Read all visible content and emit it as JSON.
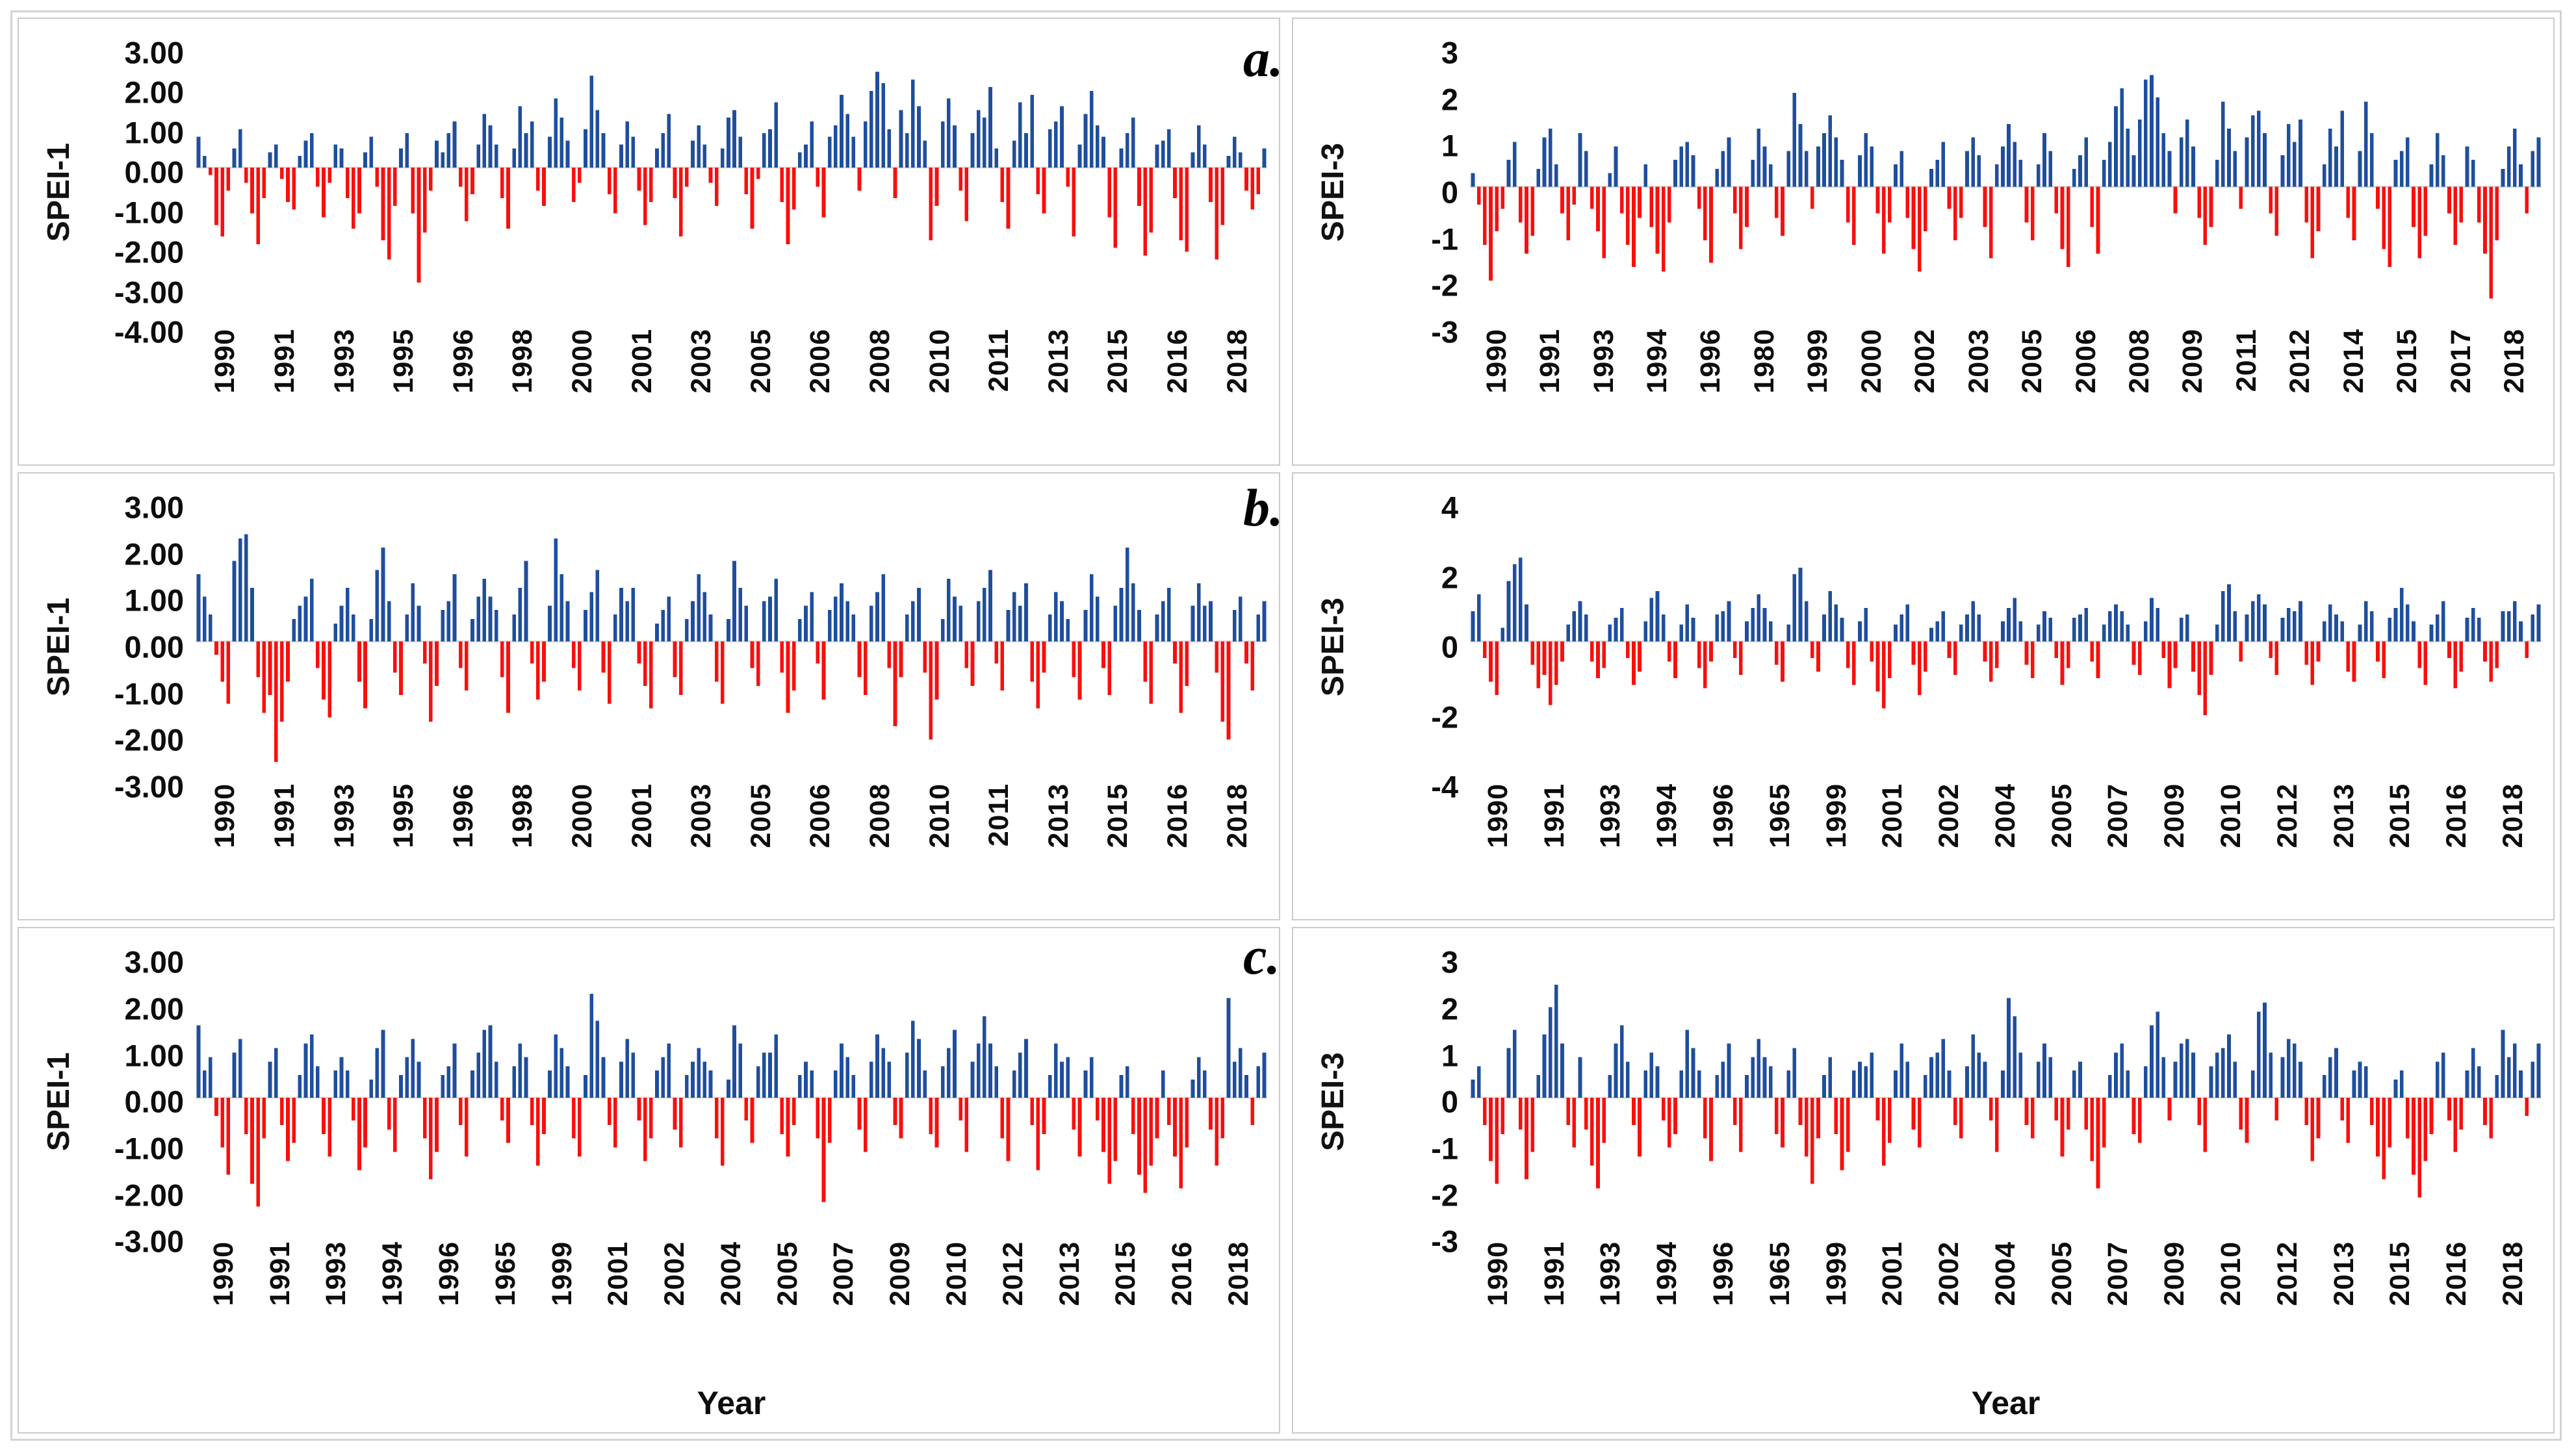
{
  "figure": {
    "panel_labels": [
      "a.",
      "b.",
      "c."
    ],
    "xlabel": "Year",
    "colors": {
      "positive": "#1f4e9c",
      "negative": "#f90f0c",
      "axis_line": "#dcdcdc",
      "panel_border": "#cbcbcb",
      "outer_border": "#d4d4d4"
    }
  },
  "chart_data": [
    {
      "id": "a-spei1",
      "type": "bar",
      "panel": "a.",
      "ylabel": "SPEI-1",
      "yticks": [
        "3.00",
        "2.00",
        "1.00",
        "0.00",
        "-1.00",
        "-2.00",
        "-3.00",
        "-4.00"
      ],
      "ylim": [
        -4,
        3
      ],
      "grid": false,
      "legend": "none",
      "xticklabels": [
        "1990",
        "1991",
        "1993",
        "1995",
        "1996",
        "1998",
        "2000",
        "2001",
        "2003",
        "2005",
        "2006",
        "2008",
        "2010",
        "2011",
        "2013",
        "2015",
        "2016",
        "2018"
      ],
      "values": [
        0.8,
        0.3,
        -0.2,
        -1.5,
        -1.8,
        -0.6,
        0.5,
        1.0,
        -0.4,
        -1.2,
        -2.0,
        -0.8,
        0.4,
        0.6,
        -0.3,
        -0.9,
        -1.1,
        0.3,
        0.7,
        0.9,
        -0.5,
        -1.3,
        -0.4,
        0.6,
        0.5,
        -0.8,
        -1.6,
        -1.2,
        0.4,
        0.8,
        -0.5,
        -1.9,
        -2.4,
        -1.0,
        0.5,
        0.9,
        -1.2,
        -3.0,
        -1.7,
        -0.6,
        0.7,
        0.4,
        0.9,
        1.2,
        -0.5,
        -1.4,
        -0.7,
        0.6,
        1.4,
        1.1,
        0.6,
        -0.8,
        -1.6,
        0.5,
        1.6,
        0.9,
        1.2,
        -0.6,
        -1.0,
        0.8,
        1.8,
        1.3,
        0.7,
        -0.9,
        -0.4,
        1.0,
        2.4,
        1.5,
        0.9,
        -0.7,
        -1.2,
        0.6,
        1.2,
        0.8,
        -0.6,
        -1.5,
        -0.9,
        0.5,
        0.9,
        1.4,
        -0.8,
        -1.8,
        -0.5,
        0.7,
        1.1,
        0.6,
        -0.4,
        -1.0,
        0.5,
        1.3,
        1.5,
        0.8,
        -0.7,
        -1.6,
        -0.3,
        0.9,
        1.0,
        1.7,
        -0.9,
        -2.0,
        -1.1,
        0.4,
        0.6,
        1.2,
        -0.5,
        -1.3,
        0.8,
        1.1,
        1.9,
        1.4,
        0.8,
        -0.6,
        1.2,
        2.0,
        2.5,
        2.2,
        1.0,
        -0.8,
        1.5,
        0.9,
        2.3,
        1.6,
        0.7,
        -1.9,
        -1.0,
        1.2,
        1.8,
        1.1,
        -0.6,
        -1.4,
        0.9,
        1.5,
        1.3,
        2.1,
        0.5,
        -0.9,
        -1.6,
        0.7,
        1.7,
        0.9,
        1.9,
        -0.7,
        -1.2,
        1.0,
        1.2,
        1.6,
        -0.5,
        -1.8,
        0.6,
        1.4,
        2.0,
        1.1,
        0.8,
        -1.3,
        -2.1,
        0.5,
        0.9,
        1.3,
        -1.0,
        -2.3,
        -1.7,
        0.6,
        0.7,
        1.0,
        -0.8,
        -1.9,
        -2.2,
        0.4,
        1.1,
        0.6,
        -0.9,
        -2.4,
        -1.5,
        0.3,
        0.8,
        0.4,
        -0.6,
        -1.1,
        -0.7,
        0.5
      ]
    },
    {
      "id": "a-spei3",
      "type": "bar",
      "panel": "a.",
      "ylabel": "SPEI-3",
      "yticks": [
        "3",
        "2",
        "1",
        "0",
        "-1",
        "-2",
        "-3"
      ],
      "ylim": [
        -3,
        3
      ],
      "grid": false,
      "legend": "none",
      "xticklabels": [
        "1990",
        "1991",
        "1993",
        "1994",
        "1996",
        "1980",
        "1999",
        "2000",
        "2002",
        "2003",
        "2005",
        "2006",
        "2008",
        "2009",
        "2011",
        "2012",
        "2014",
        "2015",
        "2017",
        "2018"
      ],
      "values": [
        0.3,
        -0.4,
        -1.3,
        -2.1,
        -1.0,
        -0.5,
        0.6,
        1.0,
        -0.8,
        -1.5,
        -1.1,
        0.4,
        1.1,
        1.3,
        0.5,
        -0.6,
        -1.2,
        -0.4,
        1.2,
        0.8,
        -0.5,
        -1.0,
        -1.6,
        0.3,
        0.9,
        -0.6,
        -1.3,
        -1.8,
        -0.7,
        0.5,
        -0.9,
        -1.5,
        -1.9,
        -0.8,
        0.6,
        0.9,
        1.0,
        0.7,
        -0.5,
        -1.2,
        -1.7,
        0.4,
        0.8,
        1.1,
        -0.6,
        -1.4,
        -0.9,
        0.6,
        1.3,
        0.9,
        0.5,
        -0.7,
        -1.1,
        0.8,
        2.1,
        1.4,
        0.8,
        -0.5,
        0.9,
        1.2,
        1.6,
        1.1,
        0.6,
        -0.8,
        -1.3,
        0.7,
        1.2,
        0.9,
        -0.6,
        -1.5,
        -0.8,
        0.5,
        0.8,
        -0.7,
        -1.4,
        -1.9,
        -1.0,
        0.4,
        0.6,
        1.0,
        -0.5,
        -1.2,
        -0.7,
        0.8,
        1.1,
        0.7,
        -0.9,
        -1.6,
        0.5,
        0.9,
        1.4,
        1.0,
        0.6,
        -0.8,
        -1.2,
        0.5,
        1.2,
        0.8,
        -0.6,
        -1.4,
        -1.8,
        0.4,
        0.7,
        1.1,
        -0.9,
        -1.5,
        0.6,
        1.0,
        1.8,
        2.2,
        1.3,
        0.7,
        1.5,
        2.4,
        2.5,
        2.0,
        1.2,
        0.8,
        -0.6,
        1.1,
        1.5,
        0.9,
        -0.7,
        -1.3,
        -0.9,
        0.6,
        1.9,
        1.3,
        0.8,
        -0.5,
        1.1,
        1.6,
        1.7,
        1.2,
        -0.6,
        -1.1,
        0.7,
        1.4,
        1.0,
        1.5,
        -0.8,
        -1.6,
        -1.0,
        0.5,
        1.3,
        0.9,
        1.7,
        -0.7,
        -1.2,
        0.8,
        1.9,
        1.2,
        -0.5,
        -1.4,
        -1.8,
        0.6,
        0.8,
        1.1,
        -0.9,
        -1.6,
        -1.1,
        0.5,
        1.2,
        0.7,
        -0.6,
        -1.3,
        -0.8,
        0.9,
        0.6,
        -0.8,
        -1.5,
        -2.5,
        -1.2,
        0.4,
        0.9,
        1.3,
        0.5,
        -0.6,
        0.8,
        1.1
      ]
    },
    {
      "id": "b-spei1",
      "type": "bar",
      "panel": "b.",
      "ylabel": "SPEI-1",
      "yticks": [
        "3.00",
        "2.00",
        "1.00",
        "0.00",
        "-1.00",
        "-2.00",
        "-3.00"
      ],
      "ylim": [
        -3,
        3
      ],
      "grid": false,
      "legend": "none",
      "xticklabels": [
        "1990",
        "1991",
        "1993",
        "1995",
        "1996",
        "1998",
        "2000",
        "2001",
        "2003",
        "2005",
        "2006",
        "2008",
        "2010",
        "2011",
        "2013",
        "2015",
        "2016",
        "2018"
      ],
      "values": [
        1.5,
        1.0,
        0.6,
        -0.3,
        -0.9,
        -1.4,
        1.8,
        2.3,
        2.4,
        1.2,
        -0.8,
        -1.6,
        -1.2,
        -2.7,
        -1.8,
        -0.9,
        0.5,
        0.8,
        1.0,
        1.4,
        -0.6,
        -1.3,
        -1.7,
        0.4,
        0.8,
        1.2,
        0.6,
        -0.9,
        -1.5,
        0.5,
        1.6,
        2.1,
        0.9,
        -0.7,
        -1.2,
        0.6,
        1.3,
        0.8,
        -0.5,
        -1.8,
        -1.0,
        0.7,
        0.9,
        1.5,
        -0.6,
        -1.1,
        0.5,
        1.0,
        1.4,
        1.0,
        0.7,
        -0.8,
        -1.6,
        0.6,
        1.2,
        1.8,
        -0.5,
        -1.3,
        -0.9,
        0.8,
        2.3,
        1.5,
        0.9,
        -0.6,
        -1.1,
        0.7,
        1.1,
        1.6,
        -0.7,
        -1.4,
        0.6,
        1.2,
        0.9,
        1.2,
        -0.5,
        -1.0,
        -1.5,
        0.4,
        0.7,
        1.0,
        -0.8,
        -1.2,
        0.5,
        0.9,
        1.5,
        1.1,
        0.6,
        -0.9,
        -1.4,
        0.5,
        1.8,
        1.2,
        0.8,
        -0.6,
        -1.0,
        0.9,
        1.0,
        1.4,
        -0.7,
        -1.6,
        -1.1,
        0.5,
        0.8,
        1.1,
        -0.5,
        -1.3,
        0.7,
        1.0,
        1.3,
        0.9,
        0.6,
        -0.8,
        -1.2,
        0.8,
        1.1,
        1.5,
        -0.6,
        -1.9,
        -0.8,
        0.6,
        0.9,
        1.2,
        -0.7,
        -2.2,
        -1.3,
        0.5,
        1.4,
        1.0,
        0.8,
        -0.6,
        -1.0,
        0.9,
        1.2,
        1.6,
        -0.5,
        -1.1,
        0.7,
        1.1,
        0.8,
        1.3,
        -0.9,
        -1.5,
        -0.7,
        0.6,
        1.1,
        0.9,
        0.5,
        -0.8,
        -1.3,
        0.7,
        1.5,
        1.0,
        -0.6,
        -1.2,
        0.8,
        1.2,
        2.1,
        1.3,
        0.7,
        -0.9,
        -1.4,
        0.6,
        0.9,
        1.2,
        -0.5,
        -1.6,
        -1.0,
        0.8,
        1.3,
        0.8,
        0.9,
        -0.7,
        -1.8,
        -2.2,
        0.7,
        1.0,
        -0.5,
        -1.1,
        0.6,
        0.9
      ]
    },
    {
      "id": "b-spei3",
      "type": "bar",
      "panel": "b.",
      "ylabel": "SPEI-3",
      "yticks": [
        "4",
        "2",
        "0",
        "-2",
        "-4"
      ],
      "ylim": [
        -4,
        4
      ],
      "grid": false,
      "legend": "none",
      "xticklabels": [
        "1990",
        "1991",
        "1993",
        "1994",
        "1996",
        "1965",
        "1999",
        "2001",
        "2002",
        "2004",
        "2005",
        "2007",
        "2009",
        "2010",
        "2012",
        "2013",
        "2015",
        "2016",
        "2018"
      ],
      "values": [
        0.9,
        1.4,
        -0.5,
        -1.2,
        -1.6,
        0.4,
        1.8,
        2.3,
        2.5,
        1.1,
        -0.7,
        -1.4,
        -1.0,
        -1.9,
        -1.3,
        -0.6,
        0.5,
        0.9,
        1.2,
        0.8,
        -0.6,
        -1.1,
        -0.8,
        0.5,
        0.7,
        1.0,
        -0.5,
        -1.3,
        -0.9,
        0.6,
        1.3,
        1.5,
        0.8,
        -0.6,
        -1.1,
        0.5,
        1.1,
        0.7,
        -0.8,
        -1.4,
        -0.6,
        0.8,
        0.9,
        1.2,
        -0.5,
        -1.0,
        0.6,
        1.0,
        1.4,
        1.0,
        0.6,
        -0.7,
        -1.2,
        0.5,
        2.0,
        2.2,
        1.2,
        -0.5,
        -0.9,
        0.8,
        1.5,
        1.1,
        0.7,
        -0.8,
        -1.3,
        0.6,
        1.0,
        -0.6,
        -1.5,
        -2.0,
        -1.1,
        0.5,
        0.8,
        1.1,
        -0.7,
        -1.6,
        -0.9,
        0.4,
        0.6,
        0.9,
        -0.5,
        -1.0,
        0.5,
        0.8,
        1.2,
        0.8,
        -0.6,
        -1.2,
        -0.8,
        0.6,
        1.0,
        1.3,
        0.6,
        -0.7,
        -1.1,
        0.5,
        0.9,
        0.7,
        -0.5,
        -1.3,
        -0.8,
        0.7,
        0.8,
        1.0,
        -0.6,
        -1.1,
        0.5,
        0.9,
        1.1,
        0.9,
        0.5,
        -0.7,
        -1.0,
        0.6,
        1.3,
        1.0,
        -0.5,
        -1.4,
        -0.8,
        0.7,
        0.8,
        -0.9,
        -1.6,
        -2.2,
        -1.0,
        0.5,
        1.5,
        1.7,
        0.9,
        -0.6,
        0.8,
        1.2,
        1.4,
        1.1,
        -0.5,
        -1.0,
        0.7,
        1.0,
        0.9,
        1.2,
        -0.7,
        -1.3,
        -0.6,
        0.6,
        1.1,
        0.8,
        0.6,
        -0.9,
        -1.2,
        0.5,
        1.2,
        0.9,
        -0.6,
        -1.1,
        0.7,
        1.0,
        1.6,
        1.1,
        0.6,
        -0.8,
        -1.3,
        0.5,
        0.8,
        1.2,
        -0.5,
        -1.4,
        -0.9,
        0.7,
        1.0,
        0.7,
        -0.6,
        -1.2,
        -0.8,
        0.9,
        0.9,
        1.2,
        0.6,
        -0.5,
        0.8,
        1.1
      ]
    },
    {
      "id": "c-spei1",
      "type": "bar",
      "panel": "c.",
      "ylabel": "SPEI-1",
      "yticks": [
        "3.00",
        "2.00",
        "1.00",
        "0.00",
        "-1.00",
        "-2.00",
        "-3.00"
      ],
      "ylim": [
        -3,
        3
      ],
      "grid": false,
      "legend": "none",
      "xlabel": "Year",
      "xticklabels": [
        "1990",
        "1991",
        "1993",
        "1994",
        "1996",
        "1965",
        "1999",
        "2001",
        "2002",
        "2004",
        "2005",
        "2007",
        "2009",
        "2010",
        "2012",
        "2013",
        "2015",
        "2016",
        "2018"
      ],
      "values": [
        1.6,
        0.6,
        0.9,
        -0.4,
        -1.1,
        -1.7,
        1.0,
        1.3,
        -0.8,
        -1.9,
        -2.4,
        -0.9,
        0.8,
        1.1,
        -0.6,
        -1.4,
        -1.0,
        0.5,
        1.2,
        1.4,
        0.7,
        -0.8,
        -1.3,
        0.6,
        0.9,
        0.6,
        -0.5,
        -1.6,
        -1.1,
        0.4,
        1.1,
        1.5,
        -0.7,
        -1.2,
        0.5,
        0.9,
        1.3,
        0.8,
        -0.9,
        -1.8,
        -1.2,
        0.5,
        0.7,
        1.2,
        -0.6,
        -1.3,
        0.6,
        1.0,
        1.5,
        1.6,
        0.8,
        -0.5,
        -1.0,
        0.7,
        1.2,
        0.9,
        -0.6,
        -1.5,
        -0.8,
        0.6,
        1.4,
        1.1,
        0.7,
        -0.9,
        -1.3,
        0.5,
        2.3,
        1.7,
        0.9,
        -0.6,
        -1.1,
        0.8,
        1.3,
        1.0,
        -0.5,
        -1.4,
        -0.9,
        0.6,
        0.9,
        1.2,
        -0.7,
        -1.1,
        0.5,
        0.8,
        1.1,
        0.8,
        0.6,
        -0.9,
        -1.5,
        0.4,
        1.6,
        1.2,
        -0.5,
        -1.0,
        0.7,
        1.0,
        1.0,
        1.4,
        -0.8,
        -1.3,
        -0.6,
        0.5,
        0.8,
        0.6,
        -0.9,
        -2.3,
        -1.0,
        0.6,
        1.2,
        0.9,
        0.5,
        -0.7,
        -1.2,
        0.8,
        1.4,
        1.1,
        0.8,
        -0.6,
        -0.9,
        1.0,
        1.7,
        1.3,
        0.6,
        -0.8,
        -1.1,
        0.7,
        1.1,
        1.5,
        -0.5,
        -1.2,
        0.8,
        1.2,
        1.8,
        1.2,
        0.7,
        -0.9,
        -1.4,
        0.6,
        1.0,
        1.3,
        -0.6,
        -1.6,
        -0.8,
        0.5,
        1.2,
        0.8,
        0.9,
        -0.7,
        -1.3,
        0.6,
        0.9,
        -0.5,
        -1.2,
        -1.9,
        -1.4,
        0.5,
        0.7,
        -0.8,
        -1.7,
        -2.1,
        -1.5,
        -0.9,
        0.6,
        -0.6,
        -1.3,
        -2.0,
        -1.1,
        0.4,
        0.9,
        0.6,
        -0.7,
        -1.5,
        -0.9,
        2.2,
        0.8,
        1.1,
        0.5,
        -0.6,
        0.7,
        1.0
      ]
    },
    {
      "id": "c-spei3",
      "type": "bar",
      "panel": "c.",
      "ylabel": "SPEI-3",
      "yticks": [
        "3",
        "2",
        "1",
        "0",
        "-1",
        "-2",
        "-3"
      ],
      "ylim": [
        -3,
        3
      ],
      "grid": false,
      "legend": "none",
      "xlabel": "Year",
      "xticklabels": [
        "1990",
        "1991",
        "1993",
        "1994",
        "1996",
        "1965",
        "1999",
        "2001",
        "2002",
        "2004",
        "2005",
        "2007",
        "2009",
        "2010",
        "2012",
        "2013",
        "2015",
        "2016",
        "2018"
      ],
      "values": [
        0.4,
        0.7,
        -0.6,
        -1.4,
        -1.9,
        -0.8,
        1.1,
        1.5,
        -0.7,
        -1.8,
        -1.2,
        0.5,
        1.4,
        2.0,
        2.5,
        1.2,
        -0.6,
        -1.1,
        0.9,
        -0.7,
        -1.5,
        -2.0,
        -1.0,
        0.5,
        1.2,
        1.6,
        0.8,
        -0.6,
        -1.3,
        0.6,
        1.0,
        0.7,
        -0.5,
        -1.1,
        -0.8,
        0.6,
        1.5,
        1.1,
        0.6,
        -0.9,
        -1.4,
        0.5,
        0.8,
        1.2,
        -0.6,
        -1.2,
        0.5,
        0.9,
        1.3,
        0.9,
        0.7,
        -0.8,
        -1.1,
        0.6,
        1.1,
        -0.6,
        -1.3,
        -1.9,
        -0.9,
        0.5,
        0.9,
        -0.8,
        -1.6,
        -1.2,
        0.6,
        0.8,
        0.7,
        1.0,
        -0.5,
        -1.5,
        -1.0,
        0.6,
        1.2,
        0.8,
        -0.7,
        -1.1,
        0.5,
        0.9,
        1.0,
        1.3,
        0.6,
        -0.6,
        -0.9,
        0.7,
        1.4,
        1.0,
        0.8,
        -0.5,
        -1.2,
        0.6,
        2.2,
        1.8,
        1.0,
        -0.6,
        -0.9,
        0.8,
        1.2,
        0.9,
        -0.5,
        -1.3,
        -0.7,
        0.6,
        0.8,
        -0.7,
        -1.4,
        -2.0,
        -1.1,
        0.5,
        1.0,
        1.2,
        0.6,
        -0.8,
        -1.0,
        0.7,
        1.6,
        1.9,
        0.9,
        -0.5,
        0.8,
        1.2,
        1.3,
        1.0,
        -0.6,
        -1.2,
        0.7,
        1.0,
        1.1,
        1.4,
        0.8,
        -0.7,
        -1.0,
        0.6,
        1.9,
        2.1,
        1.0,
        -0.5,
        0.9,
        1.3,
        1.2,
        0.8,
        -0.6,
        -1.4,
        -0.9,
        0.5,
        0.9,
        1.1,
        -0.5,
        -1.0,
        0.6,
        0.8,
        0.7,
        -0.6,
        -1.3,
        -1.8,
        -1.1,
        0.4,
        0.6,
        -0.9,
        -1.7,
        -2.2,
        -1.4,
        -0.8,
        0.8,
        1.0,
        -0.5,
        -1.2,
        -0.7,
        0.6,
        1.1,
        0.7,
        -0.6,
        -0.9,
        0.5,
        1.5,
        0.9,
        1.2,
        0.6,
        -0.4,
        0.8,
        1.2
      ]
    }
  ]
}
